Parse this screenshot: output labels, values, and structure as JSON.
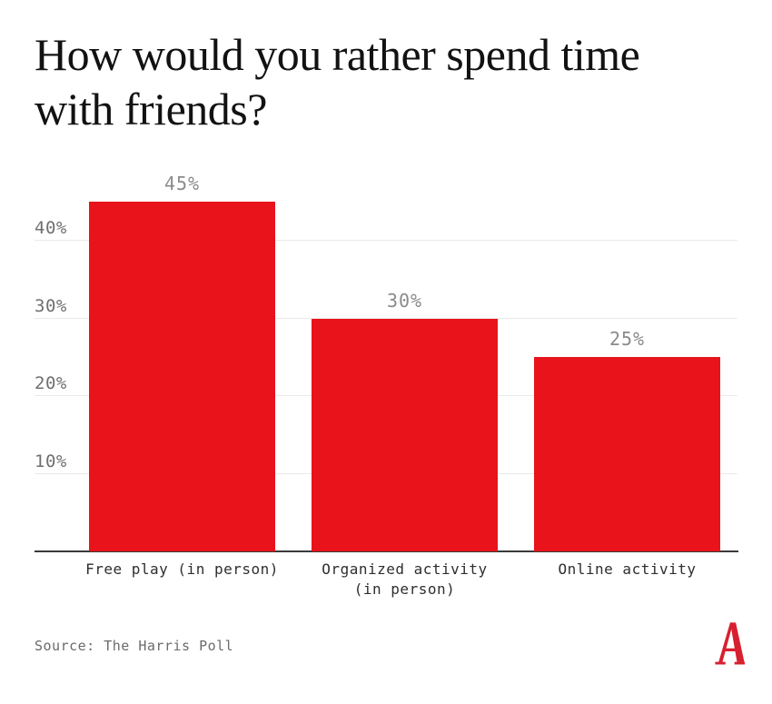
{
  "header": {
    "title_line1": "How would you rather spend time",
    "title_line2": "with friends?"
  },
  "chart_data": {
    "type": "bar",
    "title": "How would you rather spend time with friends?",
    "categories": [
      "Free play (in person)",
      "Organized activity\n(in person)",
      "Online activity"
    ],
    "values": [
      45,
      30,
      25
    ],
    "value_labels": [
      "45%",
      "30%",
      "25%"
    ],
    "unit": "%",
    "xlabel": "",
    "ylabel": "",
    "yticks": [
      10,
      20,
      30,
      40
    ],
    "ytick_labels": [
      "10%",
      "20%",
      "30%",
      "40%"
    ],
    "ylim": [
      0,
      47.6
    ],
    "grid": true,
    "legend_position": "none",
    "bar_color": "#E8131B",
    "colors": {
      "gridline": "#EAEAEA",
      "axis_line": "#3A3A3A",
      "value_label": "#8A8A8A",
      "ytick_label": "#6F6F6F",
      "category_label": "#2E2E2E"
    }
  },
  "footer": {
    "source_label": "Source: The Harris Poll",
    "logo": {
      "name": "atlantic-a-logo",
      "color": "#D7202F"
    }
  }
}
